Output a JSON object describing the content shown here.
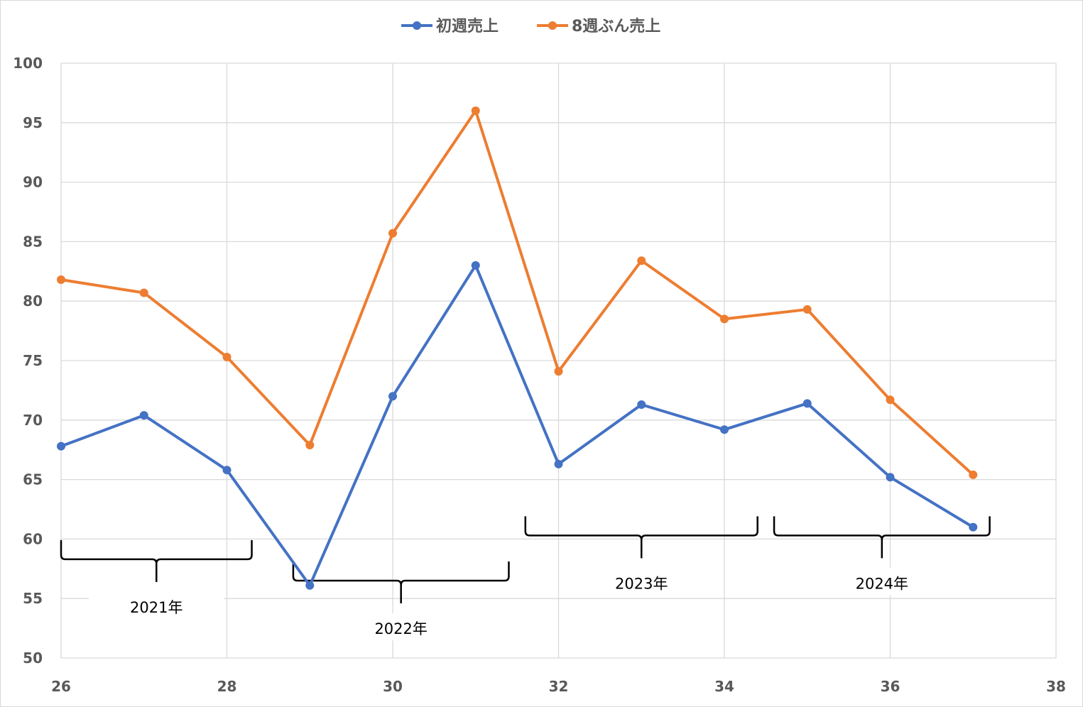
{
  "chart_data": {
    "type": "scatter",
    "mode": "lines+markers",
    "title": "",
    "xlabel": "",
    "ylabel": "",
    "xlim": [
      26,
      38
    ],
    "ylim": [
      50,
      100
    ],
    "xticks": [
      "26",
      "28",
      "30",
      "32",
      "34",
      "36",
      "38"
    ],
    "yticks": [
      "100",
      "95",
      "90",
      "85",
      "80",
      "75",
      "70",
      "65",
      "60",
      "55",
      "50"
    ],
    "grid": true,
    "legend_position": "top",
    "x": [
      26,
      27,
      28,
      29,
      30,
      31,
      32,
      33,
      34,
      35,
      36,
      37
    ],
    "series": [
      {
        "name": "初週売上",
        "color": "#4472C4",
        "values": [
          67.8,
          70.4,
          65.8,
          56.1,
          72.0,
          83.0,
          66.3,
          71.3,
          69.2,
          71.4,
          65.2,
          61.0
        ]
      },
      {
        "name": "8週ぶん売上",
        "color": "#ED7D31",
        "values": [
          81.8,
          80.7,
          75.3,
          67.9,
          85.7,
          96.0,
          74.1,
          83.4,
          78.5,
          79.3,
          71.7,
          65.4
        ]
      }
    ],
    "annotations": [
      {
        "text": "2021年",
        "x_range": [
          26.0,
          28.3
        ],
        "y": 58.3
      },
      {
        "text": "2022年",
        "x_range": [
          28.8,
          31.4
        ],
        "y": 56.5
      },
      {
        "text": "2023年",
        "x_range": [
          31.6,
          34.4
        ],
        "y": 60.3
      },
      {
        "text": "2024年",
        "x_range": [
          34.6,
          37.2
        ],
        "y": 60.3
      }
    ]
  }
}
